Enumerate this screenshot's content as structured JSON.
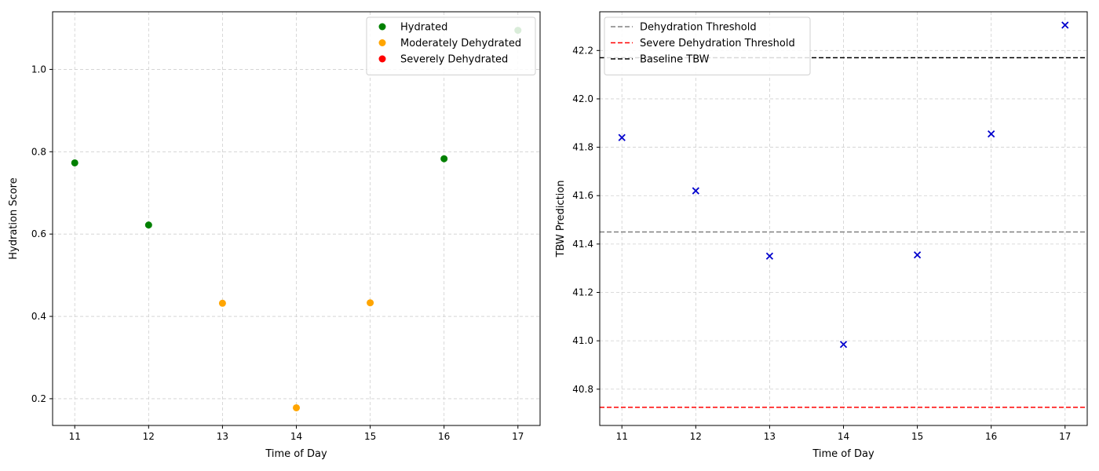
{
  "chart_data": [
    {
      "type": "scatter",
      "xlabel": "Time of Day",
      "ylabel": "Hydration Score",
      "xlim": [
        10.7,
        17.3
      ],
      "ylim": [
        0.135,
        1.14
      ],
      "xticks": [
        11,
        12,
        13,
        14,
        15,
        16,
        17
      ],
      "yticks": [
        0.2,
        0.4,
        0.6,
        0.8,
        1.0
      ],
      "ytick_labels": [
        "0.2",
        "0.4",
        "0.6",
        "0.8",
        "1.0"
      ],
      "grid": true,
      "legend_position": "top-right",
      "series": [
        {
          "name": "Hydrated",
          "color": "#008000",
          "marker": "circle",
          "x": [
            11,
            12,
            16,
            17
          ],
          "y": [
            0.773,
            0.622,
            0.783,
            1.095
          ]
        },
        {
          "name": "Moderately Dehydrated",
          "color": "#ffa500",
          "marker": "circle",
          "x": [
            13,
            14,
            15
          ],
          "y": [
            0.432,
            0.178,
            0.433
          ]
        },
        {
          "name": "Severely Dehydrated",
          "color": "#ff0000",
          "marker": "circle",
          "x": [],
          "y": []
        }
      ]
    },
    {
      "type": "scatter",
      "xlabel": "Time of Day",
      "ylabel": "TBW Prediction",
      "xlim": [
        10.7,
        17.3
      ],
      "ylim": [
        40.65,
        42.36
      ],
      "xticks": [
        11,
        12,
        13,
        14,
        15,
        16,
        17
      ],
      "yticks": [
        40.8,
        41.0,
        41.2,
        41.4,
        41.6,
        41.8,
        42.0,
        42.2
      ],
      "ytick_labels": [
        "40.8",
        "41.0",
        "41.2",
        "41.4",
        "41.6",
        "41.8",
        "42.0",
        "42.2"
      ],
      "grid": true,
      "legend_position": "top-left",
      "series": [
        {
          "color": "#0000cd",
          "marker": "x",
          "x": [
            11,
            12,
            13,
            14,
            15,
            16,
            17
          ],
          "y": [
            41.84,
            41.62,
            41.35,
            40.985,
            41.355,
            41.855,
            42.305
          ]
        }
      ],
      "hlines": [
        {
          "name": "Dehydration Threshold",
          "y": 41.45,
          "color": "#808080"
        },
        {
          "name": "Severe Dehydration Threshold",
          "y": 40.725,
          "color": "#ff0000"
        },
        {
          "name": "Baseline TBW",
          "y": 42.17,
          "color": "#000000"
        }
      ]
    }
  ]
}
